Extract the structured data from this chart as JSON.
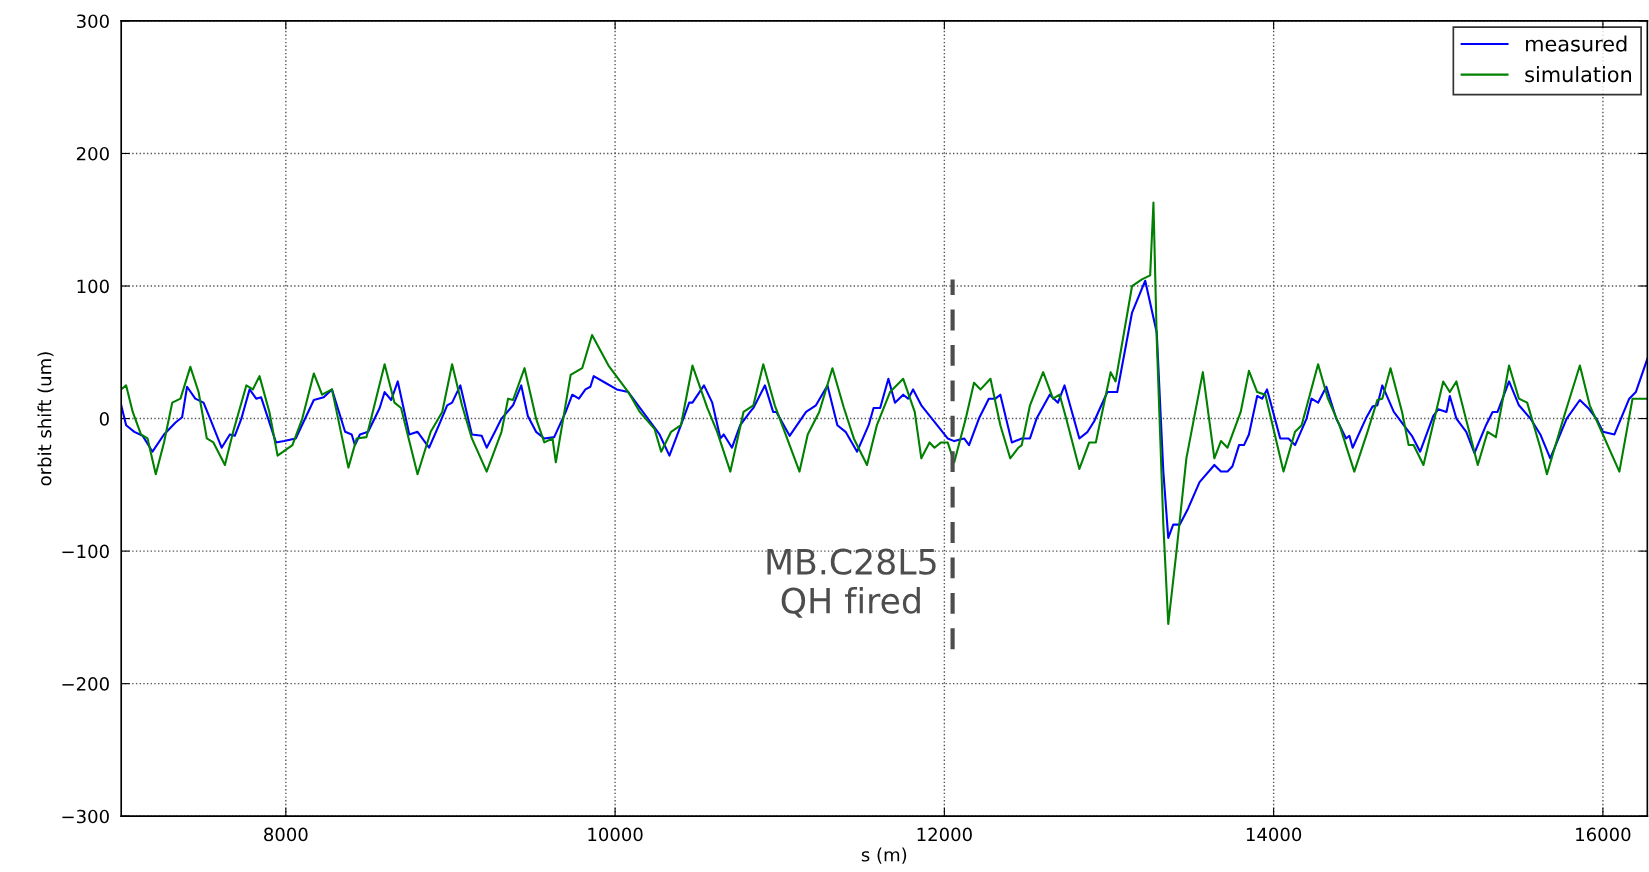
{
  "chart_data": {
    "type": "line",
    "xlabel": "s (m)",
    "ylabel": "orbit shift (um)",
    "xlim": [
      7000,
      16270
    ],
    "ylim": [
      -300,
      300
    ],
    "xticks": [
      8000,
      10000,
      12000,
      14000,
      16000
    ],
    "yticks": [
      -300,
      -200,
      -100,
      0,
      100,
      200,
      300
    ],
    "grid": true,
    "legend": "top right",
    "line_style": "solid",
    "marker": "none",
    "ref_lines": [
      {
        "axis": "x",
        "value": 12050,
        "label": "MB.C28L5\nQH fired",
        "color": "#4d4d4d",
        "line_style": "dashed"
      }
    ],
    "series": [
      {
        "name": "measured",
        "color": "#0000ff",
        "x": [
          7000,
          7030,
          7080,
          7130,
          7190,
          7260,
          7330,
          7370,
          7400,
          7450,
          7500,
          7540,
          7610,
          7660,
          7690,
          7730,
          7780,
          7820,
          7850,
          7940,
          7990,
          8060,
          8170,
          8230,
          8280,
          8360,
          8400,
          8420,
          8450,
          8500,
          8570,
          8600,
          8640,
          8680,
          8750,
          8800,
          8870,
          8930,
          8980,
          9010,
          9060,
          9130,
          9190,
          9220,
          9270,
          9310,
          9380,
          9430,
          9470,
          9520,
          9570,
          9630,
          9700,
          9740,
          9780,
          9820,
          9850,
          9870,
          9940,
          10010,
          10080,
          10270,
          10330,
          10400,
          10450,
          10470,
          10540,
          10590,
          10640,
          10660,
          10710,
          10760,
          10820,
          10840,
          10910,
          10960,
          10980,
          11060,
          11160,
          11220,
          11290,
          11350,
          11400,
          11470,
          11540,
          11570,
          11610,
          11660,
          11700,
          11750,
          11780,
          11810,
          11860,
          12020,
          12060,
          12120,
          12150,
          12210,
          12270,
          12310,
          12340,
          12410,
          12470,
          12520,
          12560,
          12640,
          12690,
          12730,
          12820,
          12870,
          12910,
          12990,
          13050,
          13140,
          13220,
          13290,
          13330,
          13360,
          13390,
          13430,
          13480,
          13550,
          13640,
          13680,
          13720,
          13750,
          13790,
          13820,
          13850,
          13900,
          13930,
          13960,
          14040,
          14090,
          14130,
          14200,
          14230,
          14270,
          14320,
          14380,
          14440,
          14460,
          14480,
          14560,
          14600,
          14630,
          14660,
          14730,
          14790,
          14840,
          14890,
          14970,
          15000,
          15050,
          15070,
          15110,
          15170,
          15220,
          15290,
          15330,
          15360,
          15430,
          15490,
          15560,
          15620,
          15680,
          15780,
          15860,
          15910,
          15960,
          16000,
          16070,
          16160,
          16200,
          16270
        ],
        "values": [
          10,
          -5,
          -10,
          -13,
          -25,
          -12,
          -3,
          1,
          24,
          15,
          12,
          0,
          -22,
          -12,
          -13,
          0,
          22,
          15,
          16,
          -18,
          -17,
          -15,
          14,
          16,
          22,
          -10,
          -12,
          -20,
          -12,
          -10,
          8,
          20,
          14,
          28,
          -12,
          -10,
          -22,
          -5,
          10,
          12,
          25,
          -12,
          -13,
          -22,
          -10,
          0,
          10,
          25,
          2,
          -10,
          -15,
          -14,
          5,
          18,
          15,
          22,
          24,
          32,
          27,
          22,
          20,
          -12,
          -28,
          -5,
          12,
          12,
          25,
          12,
          -15,
          -12,
          -22,
          -5,
          5,
          8,
          25,
          5,
          5,
          -13,
          5,
          10,
          25,
          -5,
          -10,
          -25,
          -5,
          8,
          8,
          30,
          12,
          18,
          15,
          22,
          10,
          -15,
          -17,
          -15,
          -20,
          0,
          15,
          15,
          18,
          -18,
          -15,
          -15,
          0,
          18,
          12,
          25,
          -15,
          -10,
          -2,
          20,
          20,
          80,
          104,
          65,
          -40,
          -90,
          -80,
          -80,
          -68,
          -48,
          -35,
          -40,
          -40,
          -36,
          -20,
          -20,
          -12,
          17,
          15,
          22,
          -15,
          -15,
          -20,
          0,
          15,
          12,
          24,
          0,
          -15,
          -13,
          -22,
          0,
          9,
          10,
          25,
          5,
          -5,
          -13,
          -25,
          2,
          7,
          5,
          17,
          0,
          -10,
          -26,
          -5,
          5,
          5,
          28,
          10,
          0,
          -12,
          -30,
          0,
          14,
          8,
          0,
          -10,
          -12,
          15,
          20,
          45
        ]
      },
      {
        "name": "simulation",
        "color": "#008000",
        "x": [
          7000,
          7030,
          7070,
          7120,
          7160,
          7210,
          7260,
          7310,
          7360,
          7420,
          7470,
          7520,
          7560,
          7630,
          7680,
          7760,
          7800,
          7840,
          7900,
          7950,
          8040,
          8100,
          8170,
          8220,
          8280,
          8380,
          8430,
          8490,
          8600,
          8660,
          8700,
          8800,
          8880,
          8950,
          9010,
          9070,
          9130,
          9220,
          9310,
          9350,
          9380,
          9450,
          9520,
          9570,
          9620,
          9640,
          9730,
          9800,
          9860,
          9960,
          10080,
          10150,
          10240,
          10280,
          10340,
          10400,
          10470,
          10560,
          10620,
          10700,
          10780,
          10840,
          10900,
          10970,
          11030,
          11120,
          11170,
          11240,
          11320,
          11390,
          11450,
          11530,
          11590,
          11670,
          11750,
          11820,
          11860,
          11910,
          11940,
          11980,
          12020,
          12060,
          12130,
          12180,
          12220,
          12280,
          12340,
          12400,
          12450,
          12470,
          12520,
          12600,
          12660,
          12700,
          12740,
          12820,
          12880,
          12920,
          13010,
          13040,
          13140,
          13200,
          13250,
          13270,
          13290,
          13330,
          13360,
          13410,
          13470,
          13570,
          13640,
          13680,
          13720,
          13800,
          13850,
          13900,
          13950,
          14060,
          14130,
          14170,
          14270,
          14330,
          14400,
          14490,
          14570,
          14630,
          14660,
          14710,
          14780,
          14820,
          14850,
          14910,
          15030,
          15070,
          15110,
          15240,
          15300,
          15350,
          15430,
          15490,
          15540,
          15620,
          15660,
          15760,
          15860,
          15920,
          16000,
          16100,
          16180,
          16270
        ],
        "values": [
          22,
          25,
          5,
          -12,
          -15,
          -42,
          -18,
          12,
          15,
          39,
          20,
          -15,
          -18,
          -35,
          -10,
          25,
          22,
          32,
          5,
          -28,
          -20,
          0,
          34,
          18,
          22,
          -37,
          -15,
          -14,
          41,
          12,
          8,
          -42,
          -10,
          5,
          41,
          10,
          -15,
          -40,
          -10,
          15,
          14,
          38,
          0,
          -18,
          -15,
          -33,
          33,
          38,
          63,
          40,
          20,
          5,
          -8,
          -25,
          -10,
          -5,
          40,
          8,
          -10,
          -40,
          5,
          10,
          41,
          10,
          -10,
          -40,
          -12,
          5,
          38,
          8,
          -15,
          -35,
          -5,
          20,
          30,
          5,
          -30,
          -18,
          -22,
          -18,
          -18,
          -33,
          0,
          27,
          22,
          30,
          -5,
          -30,
          -22,
          -20,
          10,
          35,
          15,
          18,
          0,
          -38,
          -18,
          -18,
          35,
          28,
          100,
          105,
          108,
          163,
          60,
          -80,
          -155,
          -100,
          -30,
          35,
          -30,
          -17,
          -22,
          5,
          36,
          20,
          18,
          -40,
          -10,
          -5,
          41,
          15,
          -5,
          -40,
          -10,
          14,
          15,
          38,
          5,
          -20,
          -20,
          -35,
          28,
          20,
          28,
          -35,
          -10,
          -14,
          40,
          15,
          12,
          -22,
          -42,
          0,
          40,
          10,
          -12,
          -40,
          15,
          15
        ]
      }
    ]
  }
}
